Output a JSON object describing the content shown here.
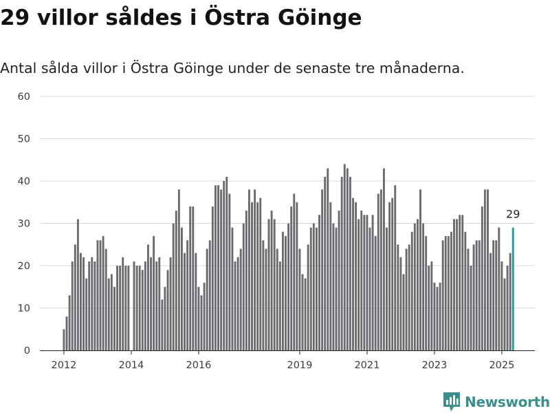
{
  "title": "29 villor såldes i Östra Göinge",
  "subtitle": "Antal sålda villor i Östra Göinge under de senaste tre månaderna.",
  "brand": "Newsworthy",
  "colors": {
    "bar": "#6b6a6e",
    "highlight": "#1f9c94",
    "grid": "#d9d9d9",
    "brand": "#3a8f8d"
  },
  "chart_data": {
    "type": "bar",
    "ylim": [
      0,
      60
    ],
    "y_ticks": [
      0,
      10,
      20,
      30,
      40,
      50,
      60
    ],
    "x_ticks": [
      "2012",
      "2014",
      "2016",
      "2019",
      "2021",
      "2023",
      "2025"
    ],
    "grid": true,
    "highlight_label": "29",
    "values": [
      5,
      8,
      13,
      21,
      25,
      31,
      23,
      22,
      17,
      21,
      22,
      21,
      26,
      26,
      27,
      24,
      17,
      18,
      15,
      20,
      20,
      22,
      20,
      20,
      0,
      21,
      20,
      20,
      19,
      21,
      25,
      22,
      27,
      21,
      22,
      12,
      15,
      19,
      22,
      30,
      33,
      38,
      29,
      23,
      26,
      34,
      34,
      23,
      15,
      13,
      16,
      24,
      26,
      34,
      39,
      39,
      38,
      40,
      41,
      37,
      29,
      21,
      22,
      24,
      30,
      33,
      38,
      35,
      38,
      35,
      36,
      26,
      24,
      31,
      33,
      31,
      24,
      21,
      28,
      27,
      30,
      34,
      37,
      35,
      24,
      18,
      17,
      25,
      29,
      30,
      29,
      32,
      38,
      41,
      43,
      35,
      30,
      29,
      33,
      41,
      44,
      43,
      41,
      36,
      35,
      31,
      33,
      32,
      32,
      29,
      32,
      27,
      37,
      38,
      43,
      29,
      35,
      36,
      39,
      25,
      22,
      18,
      24,
      25,
      28,
      30,
      31,
      38,
      30,
      27,
      20,
      21,
      16,
      15,
      16,
      26,
      27,
      27,
      28,
      31,
      31,
      32,
      32,
      28,
      24,
      20,
      25,
      26,
      26,
      34,
      38,
      38,
      23,
      26,
      26,
      29,
      21,
      17,
      20,
      23,
      29
    ]
  }
}
